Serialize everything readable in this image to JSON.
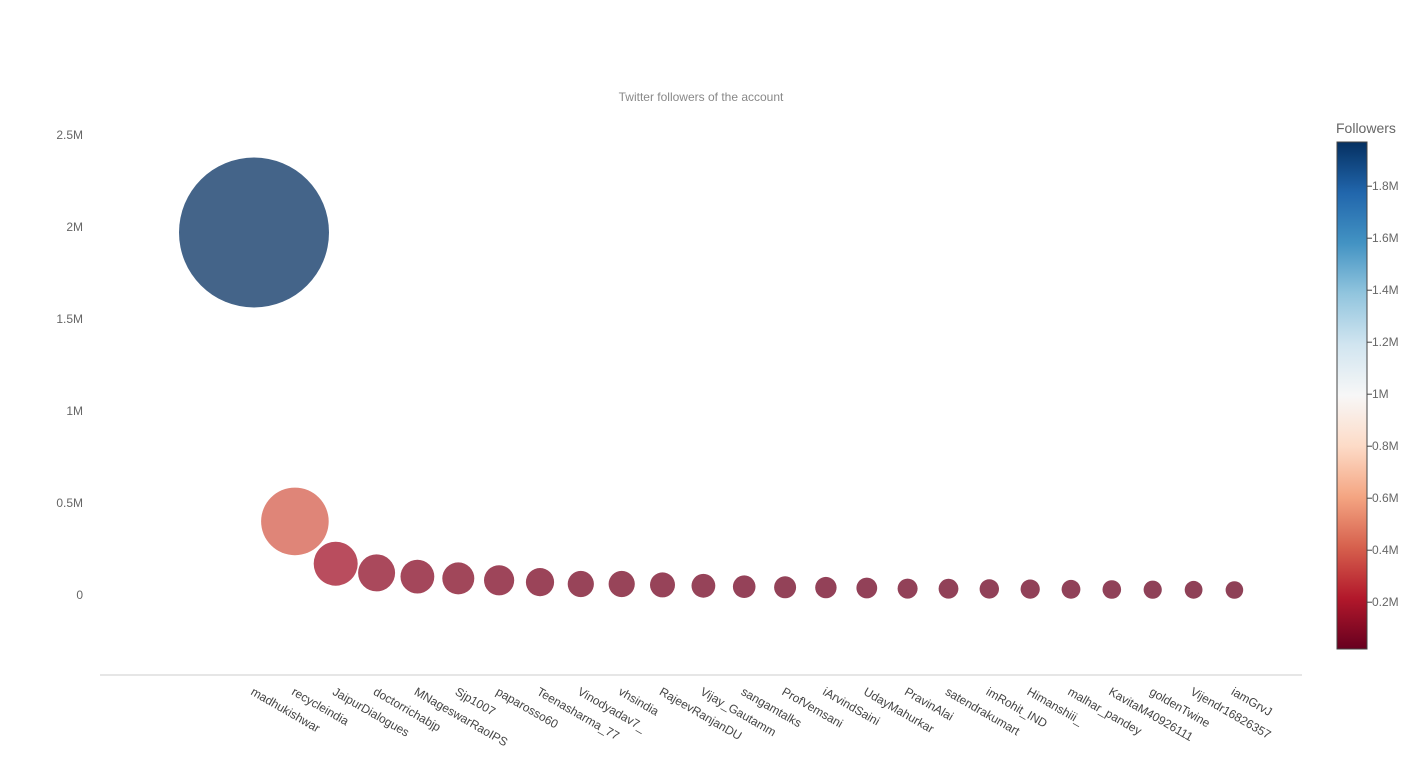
{
  "chart_data": {
    "type": "scatter",
    "title": "Twitter followers of the account",
    "xlabel": "",
    "ylabel": "",
    "ylim": [
      -440000,
      2550000
    ],
    "yticks": [
      0,
      500000,
      1000000,
      1500000,
      2000000,
      2500000
    ],
    "ytick_labels": [
      "0",
      "0.5M",
      "1M",
      "1.5M",
      "2M",
      "2.5M"
    ],
    "grid": false,
    "categories": [
      "madhukishwar",
      "recycleindia",
      "JaipurDialogues",
      "doctorrichabjp",
      "MNageswarRaoIPS",
      "Sjp1007",
      "paparosso60",
      "Teenasharma_77",
      "Vinodyadav7_",
      "vhsindia",
      "RajeevRanjanDU",
      "Vijay_Gautamm",
      "sangamtalks",
      "ProfVemsani",
      "iArvindSaini",
      "UdayMahurkar",
      "PravinAlai",
      "satendrakumart",
      "imRohit_IND",
      "Himanshiii_",
      "malhar_pandey",
      "KavitaM40926111",
      "goldenTwine",
      "Vijendr16826357",
      "iamGrvJ"
    ],
    "values": [
      1970000,
      400000,
      170000,
      120000,
      100000,
      90000,
      80000,
      70000,
      60000,
      60000,
      55000,
      50000,
      45000,
      42000,
      40000,
      38000,
      35000,
      34000,
      33000,
      32000,
      31000,
      30000,
      29000,
      28000,
      27000
    ],
    "marker": {
      "size_encodes": "Followers",
      "color_encodes": "Followers",
      "opacity": 0.75
    },
    "colorbar": {
      "title": "Followers",
      "colorscale": "RdBu",
      "range": [
        20000,
        1970000
      ],
      "ticks": [
        200000,
        400000,
        600000,
        800000,
        1000000,
        1200000,
        1400000,
        1600000,
        1800000
      ],
      "tick_labels": [
        "0.2M",
        "0.4M",
        "0.6M",
        "0.8M",
        "1M",
        "1.2M",
        "1.4M",
        "1.6M",
        "1.8M"
      ],
      "placement": "right"
    },
    "colors": {
      "axis_line": "#cccccc",
      "text": "#666666",
      "scale_low": "#67001f",
      "scale_mid": "#f7f7f7",
      "scale_high": "#053061"
    }
  }
}
